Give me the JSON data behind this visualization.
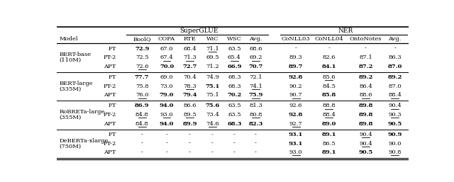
{
  "models": [
    {
      "name": "BERT-base",
      "size": "(110M)",
      "rows": [
        {
          "method": "FT",
          "sg": [
            "72.9",
            "67.0",
            "68.4",
            "71.1",
            "63.5",
            "68.6"
          ],
          "ner": [
            "-",
            "-",
            "-",
            "-"
          ],
          "bold_sg": [
            true,
            false,
            false,
            false,
            false,
            false
          ],
          "ul_sg": [
            false,
            false,
            false,
            true,
            false,
            false
          ],
          "bold_ner": [
            false,
            false,
            false,
            false
          ],
          "ul_ner": [
            false,
            false,
            false,
            false
          ]
        },
        {
          "method": "PT-2",
          "sg": [
            "72.5",
            "67.4",
            "71.3",
            "69.5",
            "65.4",
            "69.2"
          ],
          "ner": [
            "89.3",
            "82.6",
            "87.1",
            "86.3"
          ],
          "bold_sg": [
            false,
            false,
            false,
            false,
            false,
            false
          ],
          "ul_sg": [
            false,
            true,
            true,
            false,
            true,
            true
          ],
          "bold_ner": [
            false,
            false,
            false,
            false
          ],
          "ul_ner": [
            false,
            false,
            false,
            false
          ]
        },
        {
          "method": "APT",
          "sg": [
            "72.6",
            "70.0",
            "72.7",
            "71.2",
            "66.9",
            "70.7"
          ],
          "ner": [
            "89.7",
            "84.1",
            "87.2",
            "87.0"
          ],
          "bold_sg": [
            false,
            true,
            true,
            false,
            true,
            true
          ],
          "ul_sg": [
            true,
            false,
            false,
            false,
            false,
            false
          ],
          "bold_ner": [
            true,
            true,
            true,
            true
          ],
          "ul_ner": [
            false,
            false,
            false,
            false
          ]
        }
      ]
    },
    {
      "name": "BERT-large",
      "size": "(335M)",
      "rows": [
        {
          "method": "FT",
          "sg": [
            "77.7",
            "69.0",
            "70.4",
            "74.9",
            "68.3",
            "72.1"
          ],
          "ner": [
            "92.8",
            "85.6",
            "89.2",
            "89.2"
          ],
          "bold_sg": [
            true,
            false,
            false,
            false,
            false,
            false
          ],
          "ul_sg": [
            false,
            false,
            false,
            false,
            false,
            false
          ],
          "bold_ner": [
            true,
            false,
            true,
            true
          ],
          "ul_ner": [
            false,
            true,
            false,
            false
          ]
        },
        {
          "method": "PT-2",
          "sg": [
            "75.8",
            "73.0",
            "78.3",
            "75.1",
            "68.3",
            "74.1"
          ],
          "ner": [
            "90.2",
            "84.5",
            "86.4",
            "87.0"
          ],
          "bold_sg": [
            false,
            false,
            false,
            true,
            false,
            false
          ],
          "ul_sg": [
            false,
            false,
            true,
            false,
            false,
            true
          ],
          "bold_ner": [
            false,
            false,
            false,
            false
          ],
          "ul_ner": [
            false,
            false,
            false,
            false
          ]
        },
        {
          "method": "APT",
          "sg": [
            "76.0",
            "79.0",
            "79.4",
            "75.1",
            "70.2",
            "75.9"
          ],
          "ner": [
            "90.7",
            "85.8",
            "88.6",
            "88.4"
          ],
          "bold_sg": [
            false,
            true,
            true,
            false,
            true,
            true
          ],
          "ul_sg": [
            true,
            false,
            false,
            false,
            false,
            true
          ],
          "bold_ner": [
            false,
            true,
            false,
            false
          ],
          "ul_ner": [
            true,
            false,
            true,
            true
          ]
        }
      ]
    },
    {
      "name": "RoBRETa-large",
      "size": "(355M)",
      "rows": [
        {
          "method": "FT",
          "sg": [
            "86.9",
            "94.0",
            "86.6",
            "75.6",
            "63.5",
            "81.3"
          ],
          "ner": [
            "92.6",
            "88.8",
            "89.8",
            "90.4"
          ],
          "bold_sg": [
            true,
            true,
            false,
            true,
            false,
            false
          ],
          "ul_sg": [
            false,
            false,
            false,
            false,
            false,
            false
          ],
          "bold_ner": [
            false,
            false,
            true,
            false
          ],
          "ul_ner": [
            false,
            true,
            false,
            true
          ]
        },
        {
          "method": "PT-2",
          "sg": [
            "84.8",
            "93.0",
            "89.5",
            "73.4",
            "63.5",
            "80.8"
          ],
          "ner": [
            "92.8",
            "88.4",
            "89.8",
            "90.3"
          ],
          "bold_sg": [
            false,
            false,
            false,
            false,
            false,
            false
          ],
          "ul_sg": [
            true,
            true,
            true,
            false,
            false,
            true
          ],
          "bold_ner": [
            true,
            false,
            true,
            false
          ],
          "ul_ner": [
            false,
            true,
            false,
            true
          ]
        },
        {
          "method": "APT",
          "sg": [
            "84.8",
            "94.0",
            "89.9",
            "74.6",
            "68.3",
            "82.3"
          ],
          "ner": [
            "92.7",
            "89.0",
            "89.8",
            "90.5"
          ],
          "bold_sg": [
            false,
            true,
            true,
            false,
            true,
            true
          ],
          "ul_sg": [
            true,
            false,
            false,
            true,
            false,
            false
          ],
          "bold_ner": [
            false,
            true,
            true,
            true
          ],
          "ul_ner": [
            true,
            false,
            false,
            false
          ]
        }
      ]
    },
    {
      "name": "DeBERTa-xlarge",
      "size": "(750M)",
      "rows": [
        {
          "method": "FT",
          "sg": [
            "-",
            "-",
            "-",
            "-",
            "-",
            "-"
          ],
          "ner": [
            "93.1",
            "89.1",
            "90.4",
            "90.9"
          ],
          "bold_sg": [
            false,
            false,
            false,
            false,
            false,
            false
          ],
          "ul_sg": [
            false,
            false,
            false,
            false,
            false,
            false
          ],
          "bold_ner": [
            true,
            true,
            false,
            true
          ],
          "ul_ner": [
            false,
            false,
            true,
            false
          ]
        },
        {
          "method": "PT-2",
          "sg": [
            "-",
            "-",
            "-",
            "-",
            "-",
            "-"
          ],
          "ner": [
            "93.1",
            "86.5",
            "90.4",
            "90.0"
          ],
          "bold_sg": [
            false,
            false,
            false,
            false,
            false,
            false
          ],
          "ul_sg": [
            false,
            false,
            false,
            false,
            false,
            false
          ],
          "bold_ner": [
            true,
            false,
            false,
            false
          ],
          "ul_ner": [
            false,
            false,
            true,
            false
          ]
        },
        {
          "method": "APT",
          "sg": [
            "-",
            "-",
            "-",
            "-",
            "-",
            "-"
          ],
          "ner": [
            "93.0",
            "89.1",
            "90.5",
            "90.8"
          ],
          "bold_sg": [
            false,
            false,
            false,
            false,
            false,
            false
          ],
          "ul_sg": [
            false,
            false,
            false,
            false,
            false,
            false
          ],
          "bold_ner": [
            false,
            true,
            true,
            false
          ],
          "ul_ner": [
            true,
            false,
            false,
            true
          ]
        }
      ]
    }
  ],
  "sg_cols": [
    "BoolQ",
    "COPA",
    "RTE",
    "WiC",
    "WSC",
    "Avg."
  ],
  "ner_cols": [
    "CoNLL03",
    "CoNLL04",
    "OntoNotes",
    "Avg."
  ]
}
